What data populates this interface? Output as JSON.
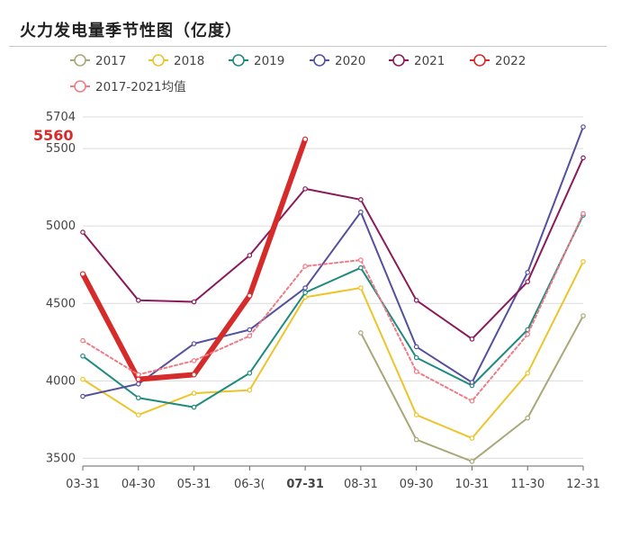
{
  "title": "火力发电量季节性图（亿度）",
  "chart_data": {
    "type": "line",
    "title": "火力发电量季节性图（亿度）",
    "categories": [
      "03-31",
      "04-30",
      "05-31",
      "06-30",
      "07-31",
      "08-31",
      "09-30",
      "10-31",
      "11-30",
      "12-31"
    ],
    "category_labels": [
      "03-31",
      "04-30",
      "05-31",
      "06-3(",
      "07-31",
      "08-31",
      "09-30",
      "10-31",
      "11-30",
      "12-31"
    ],
    "highlight_category": "07-31",
    "ylim": [
      3450,
      5704
    ],
    "yticks": [
      3500,
      4000,
      4500,
      5000,
      5500,
      5704
    ],
    "ytick_labels": [
      "3500",
      "4000",
      "4500",
      "5000",
      "5500",
      "5704"
    ],
    "highlight_value_label": "5560",
    "grid": true,
    "legend_position": "top",
    "series": [
      {
        "name": "2017",
        "color": "#a8a878",
        "width": 2,
        "values": [
          null,
          null,
          null,
          null,
          null,
          4310,
          3620,
          3480,
          3760,
          4420
        ]
      },
      {
        "name": "2018",
        "color": "#ecc52a",
        "width": 2,
        "values": [
          4010,
          3780,
          3920,
          3940,
          4540,
          4600,
          3780,
          3630,
          4050,
          4770
        ]
      },
      {
        "name": "2019",
        "color": "#1f8a80",
        "width": 2,
        "values": [
          4160,
          3890,
          3830,
          4050,
          4570,
          4730,
          4150,
          3970,
          4330,
          5070
        ]
      },
      {
        "name": "2020",
        "color": "#54509e",
        "width": 2,
        "values": [
          3900,
          3980,
          4240,
          4330,
          4600,
          5090,
          4220,
          3990,
          4700,
          5640
        ]
      },
      {
        "name": "2021",
        "color": "#8a1a5a",
        "width": 2,
        "values": [
          4960,
          4520,
          4510,
          4810,
          5240,
          5170,
          4520,
          4270,
          4640,
          5440
        ]
      },
      {
        "name": "2022",
        "color": "#d62b2b",
        "width": 6,
        "values": [
          4690,
          4010,
          4040,
          4550,
          5560,
          null,
          null,
          null,
          null,
          null
        ]
      },
      {
        "name": "2017-2021均值",
        "color": "#f07a85",
        "width": 2,
        "dashed": true,
        "values": [
          4260,
          4040,
          4130,
          4290,
          4740,
          4780,
          4060,
          3870,
          4300,
          5080
        ]
      }
    ]
  }
}
